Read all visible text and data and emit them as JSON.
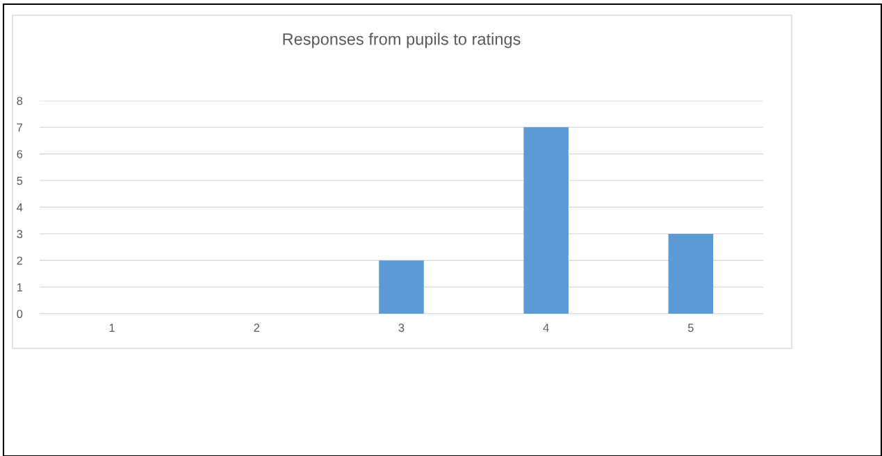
{
  "chart_data": {
    "type": "bar",
    "title": "Responses from pupils to ratings",
    "categories": [
      "1",
      "2",
      "3",
      "4",
      "5"
    ],
    "values": [
      0,
      0,
      2,
      7,
      3
    ],
    "color": "#5b9bd5",
    "ylim": [
      0,
      8
    ],
    "yticks": [
      0,
      1,
      2,
      3,
      4,
      5,
      6,
      7,
      8
    ],
    "grid": "y"
  }
}
